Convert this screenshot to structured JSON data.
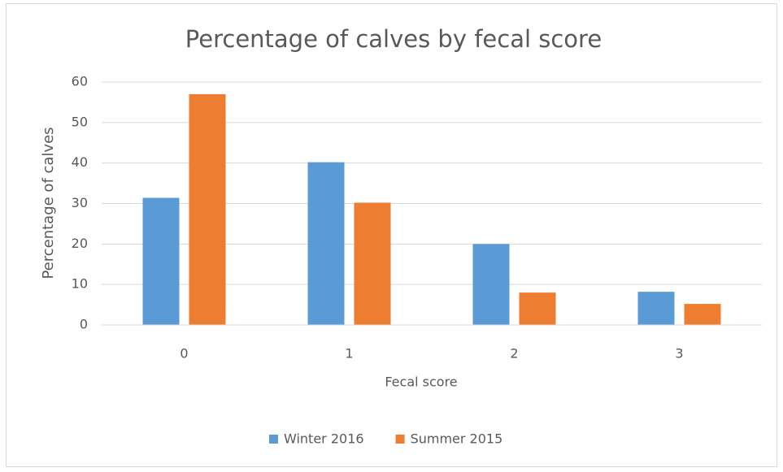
{
  "chart_data": {
    "type": "bar",
    "title": "Percentage of calves by fecal score",
    "x_label": "Fecal score",
    "y_label": "Percentage of calves",
    "categories": [
      "0",
      "1",
      "2",
      "3"
    ],
    "series": [
      {
        "name": "Winter 2016",
        "color": "#5b9bd5",
        "values": [
          31.4,
          40.2,
          20,
          8.2
        ]
      },
      {
        "name": "Summer 2015",
        "color": "#ed7d31",
        "values": [
          57,
          30.2,
          8,
          5.2
        ]
      }
    ],
    "ylim": [
      0,
      60
    ],
    "yticks": [
      0,
      10,
      20,
      30,
      40,
      50,
      60
    ],
    "grid": true,
    "legend": "bottom"
  }
}
